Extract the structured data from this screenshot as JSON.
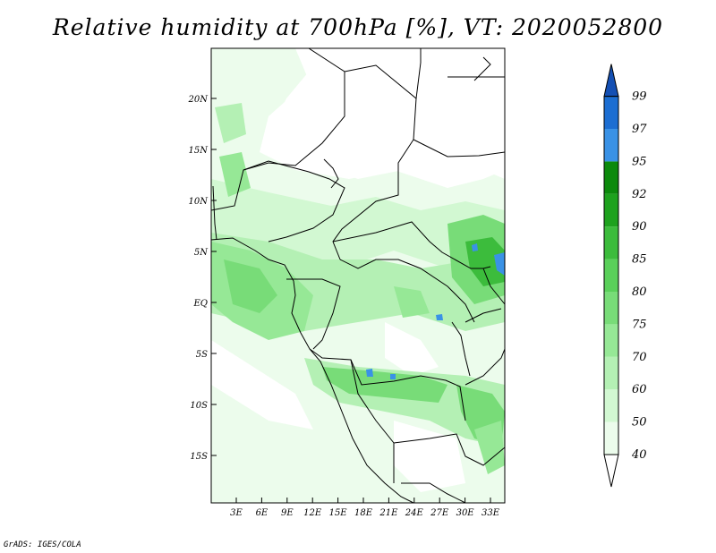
{
  "title": "Relative humidity at 700hPa [%], VT: 2020052800",
  "credit": "GrADS: IGES/COLA",
  "map": {
    "lat_labels": [
      "20N",
      "15N",
      "10N",
      "5N",
      "EQ",
      "5S",
      "10S",
      "15S"
    ],
    "lon_labels": [
      "3E",
      "6E",
      "9E",
      "12E",
      "15E",
      "18E",
      "21E",
      "24E",
      "27E",
      "30E",
      "33E"
    ]
  },
  "colorbar": {
    "levels": [
      "40",
      "50",
      "60",
      "70",
      "75",
      "80",
      "85",
      "90",
      "92",
      "95",
      "97",
      "99"
    ],
    "colors": [
      "#ffffff",
      "#ecfcec",
      "#d2f8d2",
      "#b4f0b4",
      "#96e896",
      "#78dc78",
      "#5ad05a",
      "#3cbc3c",
      "#1ea21e",
      "#0c8a0c",
      "#3a92e6",
      "#1c6ed2",
      "#1450b4"
    ]
  }
}
